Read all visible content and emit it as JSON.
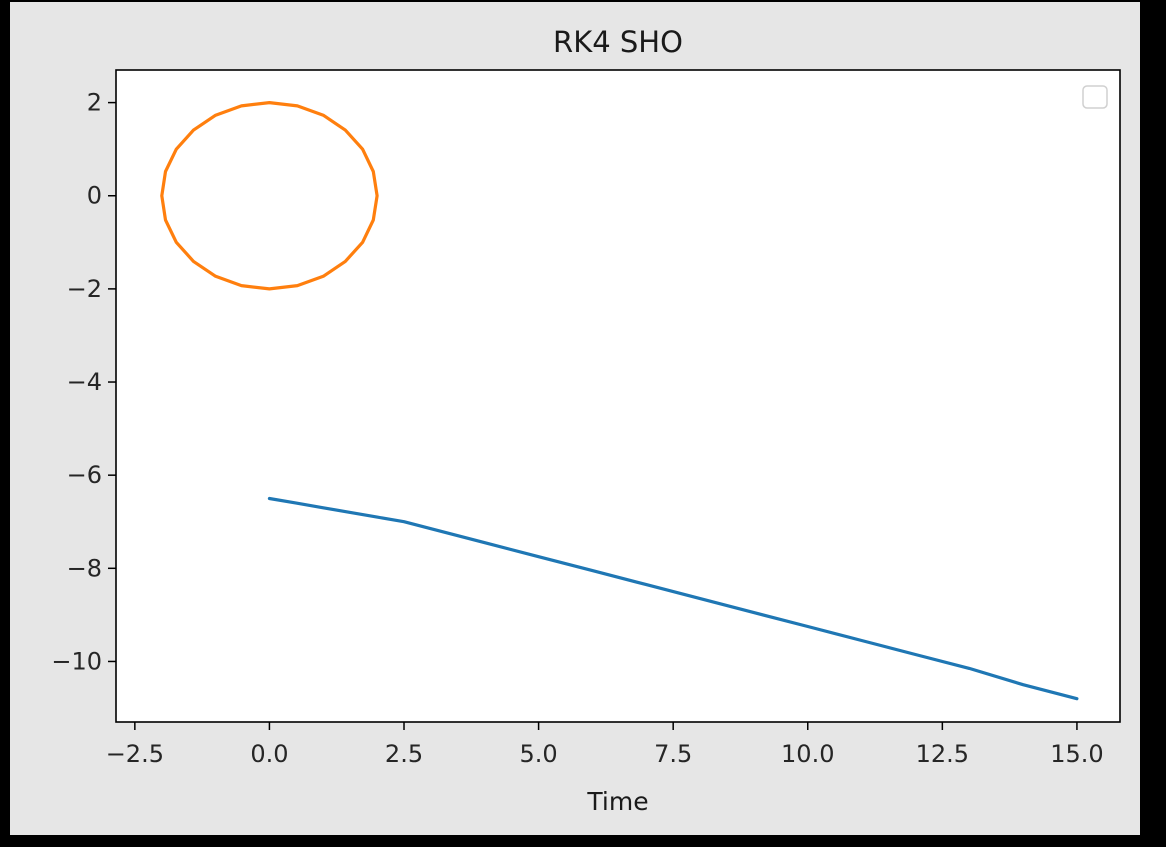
{
  "chart_data": {
    "type": "line",
    "title": "RK4 SHO",
    "xlabel": "Time",
    "ylabel": "",
    "xlim": [
      -2.85,
      15.8
    ],
    "ylim": [
      -11.3,
      2.7
    ],
    "x_ticks": [
      -2.5,
      0.0,
      2.5,
      5.0,
      7.5,
      10.0,
      12.5,
      15.0
    ],
    "x_tick_labels": [
      "−2.5",
      "0.0",
      "2.5",
      "5.0",
      "7.5",
      "10.0",
      "12.5",
      "15.0"
    ],
    "y_ticks": [
      2,
      0,
      -2,
      -4,
      -6,
      -8,
      -10
    ],
    "y_tick_labels": [
      "2",
      "0",
      "−2",
      "−4",
      "−6",
      "−8",
      "−10"
    ],
    "grid": false,
    "legend": {
      "location": "upper-right",
      "entries": []
    },
    "series": [
      {
        "color": "#1f77b4",
        "x": [
          0.0,
          0.5,
          1.0,
          1.5,
          2.0,
          2.5,
          3.0,
          4.0,
          5.0,
          6.0,
          7.0,
          8.0,
          9.0,
          10.0,
          11.0,
          12.0,
          13.0,
          14.0,
          15.0
        ],
        "y": [
          -6.5,
          -6.6,
          -6.7,
          -6.8,
          -6.9,
          -7.0,
          -7.15,
          -7.45,
          -7.75,
          -8.05,
          -8.35,
          -8.65,
          -8.95,
          -9.25,
          -9.55,
          -9.85,
          -10.15,
          -10.5,
          -10.8
        ]
      },
      {
        "color": "#ff7f0e",
        "x": [
          0.0,
          0.52,
          1.0,
          1.41,
          1.73,
          1.93,
          2.0,
          1.93,
          1.73,
          1.41,
          1.0,
          0.52,
          0.0,
          -0.52,
          -1.0,
          -1.41,
          -1.73,
          -1.93,
          -2.0,
          -1.93,
          -1.73,
          -1.41,
          -1.0,
          -0.52,
          0.0
        ],
        "y": [
          2.0,
          1.93,
          1.73,
          1.41,
          1.0,
          0.52,
          0.0,
          -0.52,
          -1.0,
          -1.41,
          -1.73,
          -1.93,
          -2.0,
          -1.93,
          -1.73,
          -1.41,
          -1.0,
          -0.52,
          0.0,
          0.52,
          1.0,
          1.41,
          1.73,
          1.93,
          2.0
        ]
      }
    ]
  }
}
